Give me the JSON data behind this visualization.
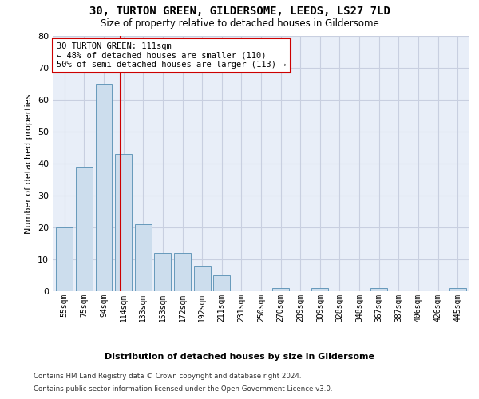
{
  "title": "30, TURTON GREEN, GILDERSOME, LEEDS, LS27 7LD",
  "subtitle": "Size of property relative to detached houses in Gildersome",
  "xlabel_bottom": "Distribution of detached houses by size in Gildersome",
  "ylabel": "Number of detached properties",
  "footer1": "Contains HM Land Registry data © Crown copyright and database right 2024.",
  "footer2": "Contains public sector information licensed under the Open Government Licence v3.0.",
  "bins": [
    55,
    75,
    94,
    114,
    133,
    153,
    172,
    192,
    211,
    231,
    250,
    270,
    289,
    309,
    328,
    348,
    367,
    387,
    406,
    426,
    445
  ],
  "values": [
    20,
    39,
    65,
    43,
    21,
    12,
    12,
    8,
    5,
    0,
    0,
    1,
    0,
    1,
    0,
    0,
    1,
    0,
    0,
    0,
    1
  ],
  "bar_color": "#ccdded",
  "bar_edge_color": "#6699bb",
  "grid_color": "#c8cfe0",
  "vline_color": "#cc0000",
  "annotation_text": "30 TURTON GREEN: 111sqm\n← 48% of detached houses are smaller (110)\n50% of semi-detached houses are larger (113) →",
  "annotation_box_color": "#cc0000",
  "ylim": [
    0,
    80
  ],
  "yticks": [
    0,
    10,
    20,
    30,
    40,
    50,
    60,
    70,
    80
  ],
  "fig_bg": "#ffffff",
  "plot_bg": "#e8eef8",
  "tick_labels": [
    "55sqm",
    "75sqm",
    "94sqm",
    "114sqm",
    "133sqm",
    "153sqm",
    "172sqm",
    "192sqm",
    "211sqm",
    "231sqm",
    "250sqm",
    "270sqm",
    "289sqm",
    "309sqm",
    "328sqm",
    "348sqm",
    "367sqm",
    "387sqm",
    "406sqm",
    "426sqm",
    "445sqm"
  ]
}
